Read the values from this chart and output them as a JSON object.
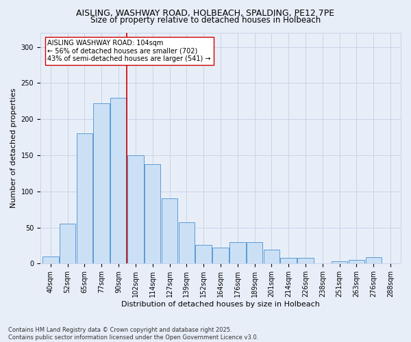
{
  "title_line1": "AISLING, WASHWAY ROAD, HOLBEACH, SPALDING, PE12 7PE",
  "title_line2": "Size of property relative to detached houses in Holbeach",
  "xlabel": "Distribution of detached houses by size in Holbeach",
  "ylabel": "Number of detached properties",
  "categories": [
    "40sqm",
    "52sqm",
    "65sqm",
    "77sqm",
    "90sqm",
    "102sqm",
    "114sqm",
    "127sqm",
    "139sqm",
    "152sqm",
    "164sqm",
    "176sqm",
    "189sqm",
    "201sqm",
    "214sqm",
    "226sqm",
    "238sqm",
    "251sqm",
    "263sqm",
    "276sqm",
    "288sqm"
  ],
  "values": [
    10,
    55,
    180,
    222,
    230,
    150,
    138,
    90,
    57,
    26,
    22,
    30,
    30,
    19,
    8,
    8,
    0,
    3,
    5,
    9,
    0
  ],
  "bar_color": "#cce0f5",
  "bar_edge_color": "#5b9bd5",
  "grid_color": "#c8d4e8",
  "vline_index": 5,
  "vline_color": "#cc0000",
  "annotation_text": "AISLING WASHWAY ROAD: 104sqm\n← 56% of detached houses are smaller (702)\n43% of semi-detached houses are larger (541) →",
  "annotation_box_facecolor": "white",
  "annotation_box_edgecolor": "#cc0000",
  "ylim": [
    0,
    320
  ],
  "yticks": [
    0,
    50,
    100,
    150,
    200,
    250,
    300
  ],
  "footnote": "Contains HM Land Registry data © Crown copyright and database right 2025.\nContains public sector information licensed under the Open Government Licence v3.0.",
  "bg_color": "#e8eef8",
  "plot_bg_color": "#e8eef8",
  "title_fontsize": 9,
  "subtitle_fontsize": 8.5,
  "axis_label_fontsize": 8,
  "tick_fontsize": 7,
  "annotation_fontsize": 7,
  "footnote_fontsize": 6
}
